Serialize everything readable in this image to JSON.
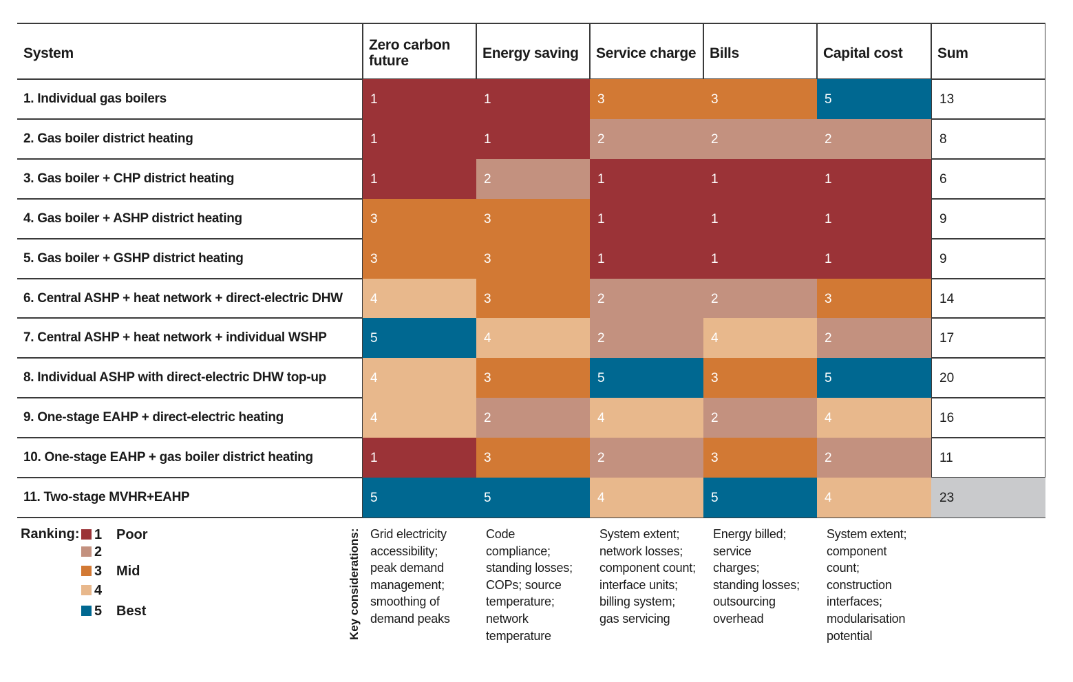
{
  "chart_data": {
    "type": "table",
    "columns": [
      "System",
      "Zero carbon future",
      "Energy saving",
      "Service charge",
      "Bills",
      "Capital cost",
      "Sum"
    ],
    "rows": [
      {
        "system": "1. Individual gas boilers",
        "scores": [
          1,
          1,
          3,
          3,
          5
        ],
        "sum": 13
      },
      {
        "system": "2. Gas boiler district heating",
        "scores": [
          1,
          1,
          2,
          2,
          2
        ],
        "sum": 8
      },
      {
        "system": "3. Gas boiler + CHP district heating",
        "scores": [
          1,
          2,
          1,
          1,
          1
        ],
        "sum": 6
      },
      {
        "system": "4. Gas boiler + ASHP district heating",
        "scores": [
          3,
          3,
          1,
          1,
          1
        ],
        "sum": 9
      },
      {
        "system": "5. Gas boiler + GSHP district heating",
        "scores": [
          3,
          3,
          1,
          1,
          1
        ],
        "sum": 9
      },
      {
        "system": "6. Central ASHP + heat network + direct-electric DHW",
        "scores": [
          4,
          3,
          2,
          2,
          3
        ],
        "sum": 14
      },
      {
        "system": "7. Central ASHP + heat network + individual WSHP",
        "scores": [
          5,
          4,
          2,
          4,
          2
        ],
        "sum": 17
      },
      {
        "system": "8. Individual ASHP with direct-electric DHW top-up",
        "scores": [
          4,
          3,
          5,
          3,
          5
        ],
        "sum": 20
      },
      {
        "system": "9. One-stage EAHP + direct-electric heating",
        "scores": [
          4,
          2,
          4,
          2,
          4
        ],
        "sum": 16
      },
      {
        "system": "10. One-stage EAHP + gas boiler district heating",
        "scores": [
          1,
          3,
          2,
          3,
          2
        ],
        "sum": 11
      },
      {
        "system": "11. Two-stage MVHR+EAHP",
        "scores": [
          5,
          5,
          4,
          5,
          4
        ],
        "sum": 23
      }
    ],
    "highlight_sum_row": 10,
    "highlight_color": "#c9cacc",
    "colors": {
      "1": "#9b3337",
      "2": "#c3917f",
      "3": "#d27934",
      "4": "#e8b88c",
      "5": "#006891"
    },
    "value_text_colors": {
      "1": "#ffffff",
      "2": "#ffffff",
      "3": "#ffffff",
      "4": "#ffffff",
      "5": "#ffffff"
    },
    "legend": {
      "title": "Ranking:",
      "items": [
        {
          "rank": "1",
          "label": "Poor"
        },
        {
          "rank": "2",
          "label": ""
        },
        {
          "rank": "3",
          "label": "Mid"
        },
        {
          "rank": "4",
          "label": ""
        },
        {
          "rank": "5",
          "label": "Best"
        }
      ]
    },
    "key_considerations": {
      "title": "Key considerations:",
      "columns": [
        [
          "Grid electricity",
          "accessibility;",
          "peak demand",
          "management;",
          "smoothing of",
          "demand peaks"
        ],
        [
          "Code",
          "compliance;",
          "standing losses;",
          "COPs; source",
          "temperature;",
          "network",
          "temperature"
        ],
        [
          "System extent;",
          "network losses;",
          "component count;",
          "interface units;",
          "billing system;",
          "gas servicing"
        ],
        [
          "Energy billed;",
          "service",
          "charges;",
          "standing losses;",
          "outsourcing",
          "overhead"
        ],
        [
          "System extent;",
          "component",
          "count;",
          "construction",
          "interfaces;",
          "modularisation",
          "potential"
        ]
      ]
    }
  }
}
